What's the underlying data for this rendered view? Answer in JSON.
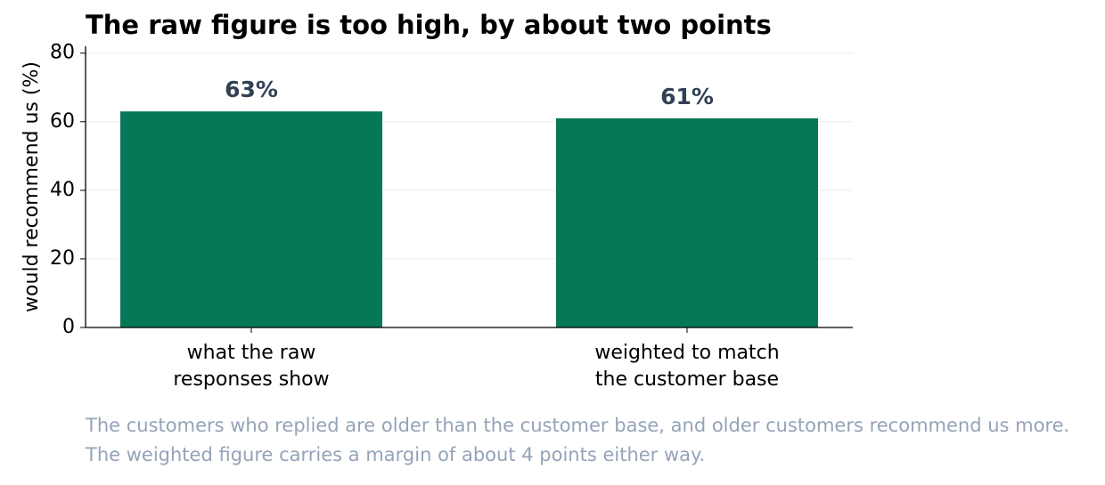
{
  "chart_data": {
    "type": "bar",
    "title": "The raw figure is too high, by about two points",
    "y_label": "would recommend us (%)",
    "categories": [
      "what the raw\nresponses show",
      "weighted to match\nthe customer base"
    ],
    "values": [
      63,
      61
    ],
    "value_labels": [
      "63%",
      "61%"
    ],
    "color": "#077857",
    "ylim": [
      0,
      82
    ],
    "yticks": [
      0,
      20,
      40,
      60,
      80
    ],
    "grid": true,
    "note": "The customers who replied are older than the customer base, and older customers recommend us more. The weighted figure carries a margin of about 4 points either way."
  }
}
